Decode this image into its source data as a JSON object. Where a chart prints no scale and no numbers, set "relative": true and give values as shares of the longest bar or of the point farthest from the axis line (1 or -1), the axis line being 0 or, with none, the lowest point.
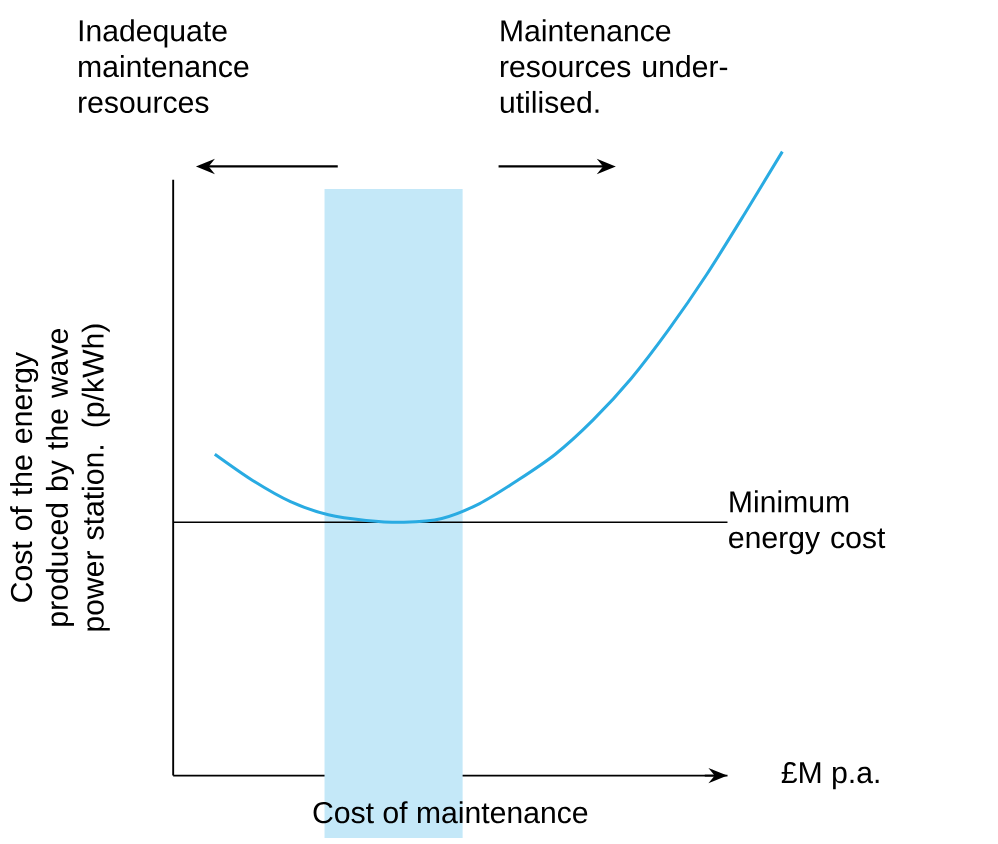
{
  "chart_data": {
    "type": "line",
    "relative": true,
    "xlabel": "Cost of maintenance",
    "ylabel": "Cost of the energy produced by the wave power station. (p/kWh)",
    "categories": [
      null,
      null,
      null,
      null,
      null,
      null,
      null,
      null,
      null,
      null,
      null,
      null,
      null,
      null,
      null,
      null
    ],
    "series": [
      {
        "color": "#29abe2",
        "values": [
          0.515,
          0.473,
          0.439,
          0.418,
          0.409,
          0.406,
          0.412,
          0.436,
          0.473,
          0.515,
          0.57,
          0.636,
          0.715,
          0.803,
          0.9,
          1.0
        ]
      }
    ],
    "ref_lines": [
      {
        "axis": "y",
        "value": 0.406,
        "label": "Minimum energy cost",
        "color": "#000000"
      }
    ],
    "annotations": [
      "Inadequate maintenance resources",
      "Maintenance resources under-utilised.",
      "£M p.a."
    ],
    "grid": false,
    "marker": "none",
    "line_style": "solid"
  }
}
